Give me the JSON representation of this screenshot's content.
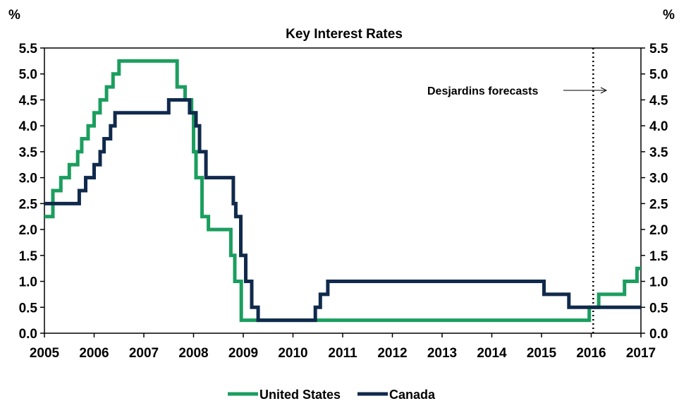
{
  "chart_data": {
    "type": "line",
    "title": "Key Interest Rates",
    "ylabel_left": "%",
    "ylabel_right": "%",
    "xlim": [
      2005,
      2017
    ],
    "ylim": [
      0,
      5.5
    ],
    "x_ticks": [
      "2005",
      "2006",
      "2007",
      "2008",
      "2009",
      "2010",
      "2011",
      "2012",
      "2013",
      "2014",
      "2015",
      "2016",
      "2017"
    ],
    "y_ticks": [
      "0.0",
      "0.5",
      "1.0",
      "1.5",
      "2.0",
      "2.5",
      "3.0",
      "3.5",
      "4.0",
      "4.5",
      "5.0",
      "5.5"
    ],
    "forecast_start": 2016.04,
    "annotation": "Desjardins forecasts",
    "series": [
      {
        "name": "United States",
        "color": "#1b9e5f",
        "step": true,
        "points": [
          [
            2005.0,
            2.25
          ],
          [
            2005.17,
            2.75
          ],
          [
            2005.33,
            3.0
          ],
          [
            2005.5,
            3.25
          ],
          [
            2005.67,
            3.5
          ],
          [
            2005.75,
            3.75
          ],
          [
            2005.88,
            4.0
          ],
          [
            2006.0,
            4.25
          ],
          [
            2006.12,
            4.5
          ],
          [
            2006.25,
            4.75
          ],
          [
            2006.38,
            5.0
          ],
          [
            2006.5,
            5.25
          ],
          [
            2007.67,
            4.75
          ],
          [
            2007.83,
            4.5
          ],
          [
            2007.96,
            4.25
          ],
          [
            2008.0,
            3.5
          ],
          [
            2008.05,
            3.0
          ],
          [
            2008.17,
            2.25
          ],
          [
            2008.3,
            2.0
          ],
          [
            2008.75,
            1.5
          ],
          [
            2008.83,
            1.0
          ],
          [
            2008.96,
            0.25
          ],
          [
            2015.96,
            0.5
          ],
          [
            2016.15,
            0.75
          ],
          [
            2016.67,
            1.0
          ],
          [
            2016.92,
            1.25
          ],
          [
            2017.0,
            1.25
          ]
        ]
      },
      {
        "name": "Canada",
        "color": "#102a4c",
        "step": true,
        "points": [
          [
            2005.0,
            2.5
          ],
          [
            2005.7,
            2.75
          ],
          [
            2005.83,
            3.0
          ],
          [
            2006.0,
            3.25
          ],
          [
            2006.12,
            3.5
          ],
          [
            2006.2,
            3.75
          ],
          [
            2006.33,
            4.0
          ],
          [
            2006.42,
            4.25
          ],
          [
            2007.5,
            4.5
          ],
          [
            2007.92,
            4.25
          ],
          [
            2008.05,
            4.0
          ],
          [
            2008.12,
            3.5
          ],
          [
            2008.25,
            3.0
          ],
          [
            2008.8,
            2.5
          ],
          [
            2008.85,
            2.25
          ],
          [
            2008.95,
            1.5
          ],
          [
            2009.05,
            1.0
          ],
          [
            2009.17,
            0.5
          ],
          [
            2009.3,
            0.25
          ],
          [
            2010.45,
            0.5
          ],
          [
            2010.55,
            0.75
          ],
          [
            2010.7,
            1.0
          ],
          [
            2015.05,
            0.75
          ],
          [
            2015.55,
            0.5
          ],
          [
            2017.0,
            0.5
          ]
        ]
      }
    ]
  }
}
